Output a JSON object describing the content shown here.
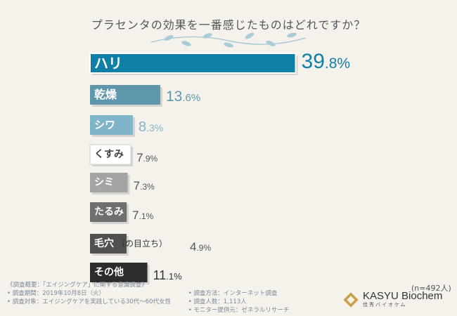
{
  "title": "プラセンタの効果を一番感じたものはどれですか？",
  "chart_data": {
    "type": "bar",
    "orientation": "horizontal",
    "title": "プラセンタの効果を一番感じたものはどれですか？",
    "categories": [
      "ハリ",
      "乾燥",
      "シワ",
      "くすみ",
      "シミ",
      "たるみ",
      "毛穴",
      "その他"
    ],
    "category_notes": [
      "",
      "",
      "",
      "",
      "",
      "",
      "（の目立ち）",
      ""
    ],
    "values": [
      39.8,
      13.6,
      8.3,
      7.9,
      7.3,
      7.1,
      4.9,
      11.1
    ],
    "value_labels": [
      {
        "int": "39",
        "dec": ".8%"
      },
      {
        "int": "13",
        "dec": ".6%"
      },
      {
        "int": "8",
        "dec": ".3%"
      },
      {
        "int": "7",
        "dec": ".9%"
      },
      {
        "int": "7",
        "dec": ".3%"
      },
      {
        "int": "7",
        "dec": ".1%"
      },
      {
        "int": "4",
        "dec": ".9%"
      },
      {
        "int": "11",
        "dec": ".1%"
      }
    ],
    "bar_colors": [
      "#0e7fa6",
      "#5e97ab",
      "#7fb5c8",
      "#ffffff",
      "#a4a4a4",
      "#6f6f6f",
      "#505050",
      "#2c2c2c"
    ],
    "value_colors": [
      "#0e7fa6",
      "#5e97ab",
      "#7fb5c8",
      "#555555",
      "#555555",
      "#555555",
      "#555555",
      "#333333"
    ],
    "xlim": [
      0,
      41
    ],
    "n_label": "(n=492人)"
  },
  "survey": {
    "header": "《調査概要：「エイジングケア」に関する意識調査》",
    "period": "• 調査期間：2019年10月8日（火）",
    "method": "• 調査方法：インターネット調査",
    "count": "• 調査人数：1,113人",
    "target": "• 調査対象：エイジングケアを実践している30代〜60代女性",
    "provider": "• モニター提供元：ゼネラルリサーチ"
  },
  "brand": {
    "name": "KASYU Biochem",
    "sub": "佳秀バイオケム"
  },
  "colors": {
    "background": "#f5f2ec",
    "accent": "#0e7fa6"
  }
}
